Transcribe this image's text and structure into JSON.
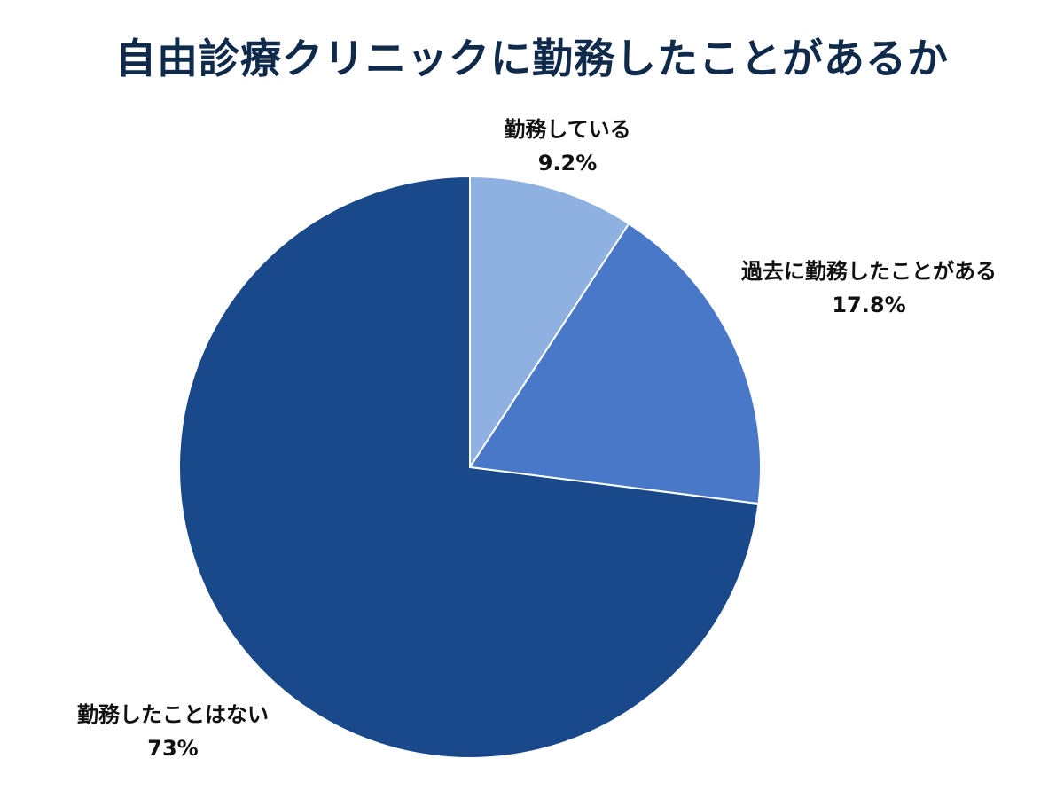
{
  "chart_data": {
    "type": "pie",
    "title": "自由診療クリニックに勤務したことがあるか",
    "slices": [
      {
        "label": "勤務している",
        "value": 9.2,
        "value_label": "9.2%",
        "color": "#8eb1e2"
      },
      {
        "label": "過去に勤務したことがある",
        "value": 17.8,
        "value_label": "17.8%",
        "color": "#4a78c8"
      },
      {
        "label": "勤務したことはない",
        "value": 73,
        "value_label": "73%",
        "color": "#19498b"
      }
    ],
    "start_angle": "12 o'clock",
    "direction": "clockwise",
    "legend": "none"
  }
}
